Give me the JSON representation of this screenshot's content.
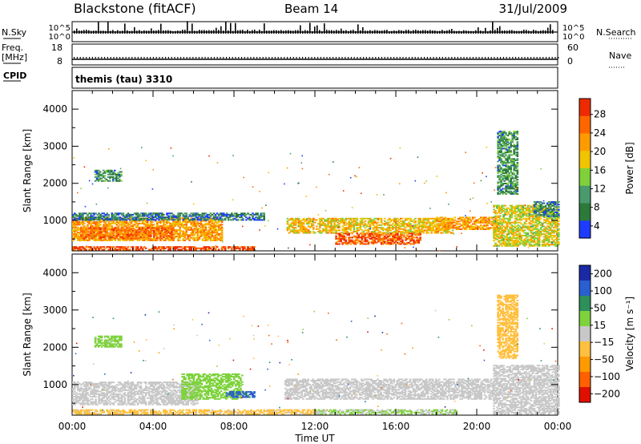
{
  "header": {
    "station": "Blackstone (fitACF)",
    "beam": "Beam 14",
    "date": "31/Jul/2009"
  },
  "strips": {
    "nsky_label": "N.Sky",
    "nsky_ticks": [
      "10^5",
      "10^0"
    ],
    "nsearch_label": "N.Search",
    "nsearch_ticks": [
      "10^5",
      "10^0"
    ],
    "freq_label": "Freq.",
    "freq_unit": "[MHz]",
    "freq_ticks": [
      "18",
      "8"
    ],
    "nave_label": "Nave",
    "nave_ticks": [
      "60",
      "0"
    ],
    "cpid_label": "CPID",
    "cpid_text": "themis (tau) 3310"
  },
  "colors": {
    "power_scale": [
      "#1e3cff",
      "#2c7a3a",
      "#4b9a6e",
      "#7fd03a",
      "#f0c400",
      "#ff9b00",
      "#ff6600",
      "#ee2b00"
    ],
    "velocity_scale": [
      "#1a2aa6",
      "#2a5fd0",
      "#2e8f5a",
      "#7ed23c",
      "#c8c8c8",
      "#ffc040",
      "#ff9a00",
      "#ff6000",
      "#e01000"
    ],
    "ground_scatter": "#c8c8c8"
  },
  "chart_data": [
    {
      "type": "heatmap",
      "title": "",
      "xlabel": "",
      "ylabel": "Slant Range [km]",
      "colorbar_label": "Power [dB]",
      "colorbar_ticks": [
        "28",
        "24",
        "20",
        "16",
        "12",
        "8",
        "4"
      ],
      "x_ticks": [
        "00:00",
        "04:00",
        "08:00",
        "12:00",
        "16:00",
        "20:00",
        "00:00"
      ],
      "y_ticks": [
        "4000",
        "3000",
        "2000",
        "1000"
      ],
      "xlim_hours": [
        0,
        24
      ],
      "ylim_km": [
        180,
        4500
      ],
      "clim": [
        0,
        30
      ],
      "regions": [
        {
          "t0": 0.0,
          "t1": 7.4,
          "r0": 450,
          "r1": 1050,
          "v": 20
        },
        {
          "t0": 0.4,
          "t1": 5.0,
          "r0": 500,
          "r1": 800,
          "v": 24
        },
        {
          "t0": 0.0,
          "t1": 9.0,
          "r0": 200,
          "r1": 300,
          "v": 27
        },
        {
          "t0": 1.1,
          "t1": 2.4,
          "r0": 2050,
          "r1": 2350,
          "v": 8
        },
        {
          "t0": 0.0,
          "t1": 9.5,
          "r0": 1000,
          "r1": 1200,
          "v": 6
        },
        {
          "t0": 10.6,
          "t1": 18.8,
          "r0": 650,
          "r1": 1050,
          "v": 18
        },
        {
          "t0": 13.0,
          "t1": 17.2,
          "r0": 350,
          "r1": 650,
          "v": 25
        },
        {
          "t0": 18.0,
          "t1": 21.0,
          "r0": 750,
          "r1": 1100,
          "v": 20
        },
        {
          "t0": 20.8,
          "t1": 24.0,
          "r0": 300,
          "r1": 1400,
          "v": 16
        },
        {
          "t0": 22.8,
          "t1": 24.0,
          "r0": 1100,
          "r1": 1500,
          "v": 6
        },
        {
          "t0": 21.0,
          "t1": 22.0,
          "r0": 1700,
          "r1": 3400,
          "v": 8
        }
      ]
    },
    {
      "type": "heatmap",
      "title": "",
      "xlabel": "Time UT",
      "ylabel": "Slant Range [km]",
      "colorbar_label": "Velocity [m s⁻¹]",
      "colorbar_ticks": [
        "200",
        "100",
        "50",
        "15",
        "−15",
        "−50",
        "−100",
        "−200"
      ],
      "x_ticks": [
        "00:00",
        "04:00",
        "08:00",
        "12:00",
        "16:00",
        "20:00",
        "00:00"
      ],
      "y_ticks": [
        "4000",
        "3000",
        "2000",
        "1000"
      ],
      "xlim_hours": [
        0,
        24
      ],
      "ylim_km": [
        180,
        4500
      ],
      "clim": [
        -250,
        250
      ],
      "regions": [
        {
          "t0": 0.0,
          "t1": 6.2,
          "r0": 450,
          "r1": 1050,
          "v": 0
        },
        {
          "t0": 5.4,
          "t1": 8.4,
          "r0": 600,
          "r1": 1300,
          "v": 60
        },
        {
          "t0": 7.6,
          "t1": 9.0,
          "r0": 650,
          "r1": 800,
          "v": 150
        },
        {
          "t0": 0.0,
          "t1": 12.0,
          "r0": 200,
          "r1": 320,
          "v": -40
        },
        {
          "t0": 1.1,
          "t1": 2.4,
          "r0": 2000,
          "r1": 2300,
          "v": 40
        },
        {
          "t0": 10.5,
          "t1": 20.8,
          "r0": 600,
          "r1": 1150,
          "v": 0
        },
        {
          "t0": 20.8,
          "t1": 24.0,
          "r0": 200,
          "r1": 1500,
          "v": 0
        },
        {
          "t0": 12.0,
          "t1": 19.0,
          "r0": 200,
          "r1": 320,
          "v": 30
        },
        {
          "t0": 21.0,
          "t1": 22.0,
          "r0": 1700,
          "r1": 3400,
          "v": -60
        }
      ]
    }
  ]
}
